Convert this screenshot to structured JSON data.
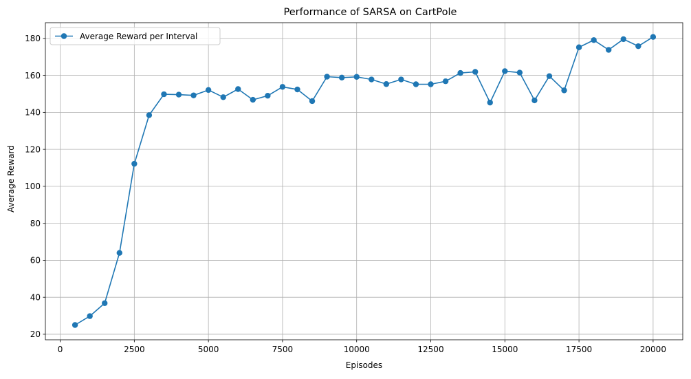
{
  "chart_data": {
    "type": "line",
    "title": "Performance of SARSA on CartPole",
    "xlabel": "Episodes",
    "ylabel": "Average Reward",
    "xlim": [
      -500,
      21000
    ],
    "ylim": [
      17,
      188.5
    ],
    "xticks": [
      0,
      2500,
      5000,
      7500,
      10000,
      12500,
      15000,
      17500,
      20000
    ],
    "xtick_labels": [
      "0",
      "2500",
      "5000",
      "7500",
      "10000",
      "12500",
      "15000",
      "17500",
      "20000"
    ],
    "yticks": [
      20,
      40,
      60,
      80,
      100,
      120,
      140,
      160,
      180
    ],
    "ytick_labels": [
      "20",
      "40",
      "60",
      "80",
      "100",
      "120",
      "140",
      "160",
      "180"
    ],
    "grid": true,
    "legend_position": "upper-left",
    "series": [
      {
        "name": "Average Reward per Interval",
        "color": "#1f77b4",
        "marker": "circle",
        "x": [
          500,
          1000,
          1500,
          2000,
          2500,
          3000,
          3500,
          4000,
          4500,
          5000,
          5500,
          6000,
          6500,
          7000,
          7500,
          8000,
          8500,
          9000,
          9500,
          10000,
          10500,
          11000,
          11500,
          12000,
          12500,
          13000,
          13500,
          14000,
          14500,
          15000,
          15500,
          16000,
          16500,
          17000,
          17500,
          18000,
          18500,
          19000,
          19500,
          20000
        ],
        "y": [
          25.0,
          29.8,
          36.8,
          64.0,
          112.2,
          138.5,
          149.8,
          149.6,
          149.2,
          152.1,
          148.2,
          152.6,
          146.8,
          149.0,
          153.8,
          152.4,
          146.1,
          159.3,
          158.8,
          159.2,
          157.8,
          155.3,
          157.8,
          155.2,
          155.2,
          156.8,
          161.3,
          161.9,
          145.3,
          162.3,
          161.5,
          146.5,
          159.6,
          151.9,
          175.2,
          179.1,
          173.8,
          179.6,
          175.8,
          180.8
        ]
      }
    ]
  }
}
